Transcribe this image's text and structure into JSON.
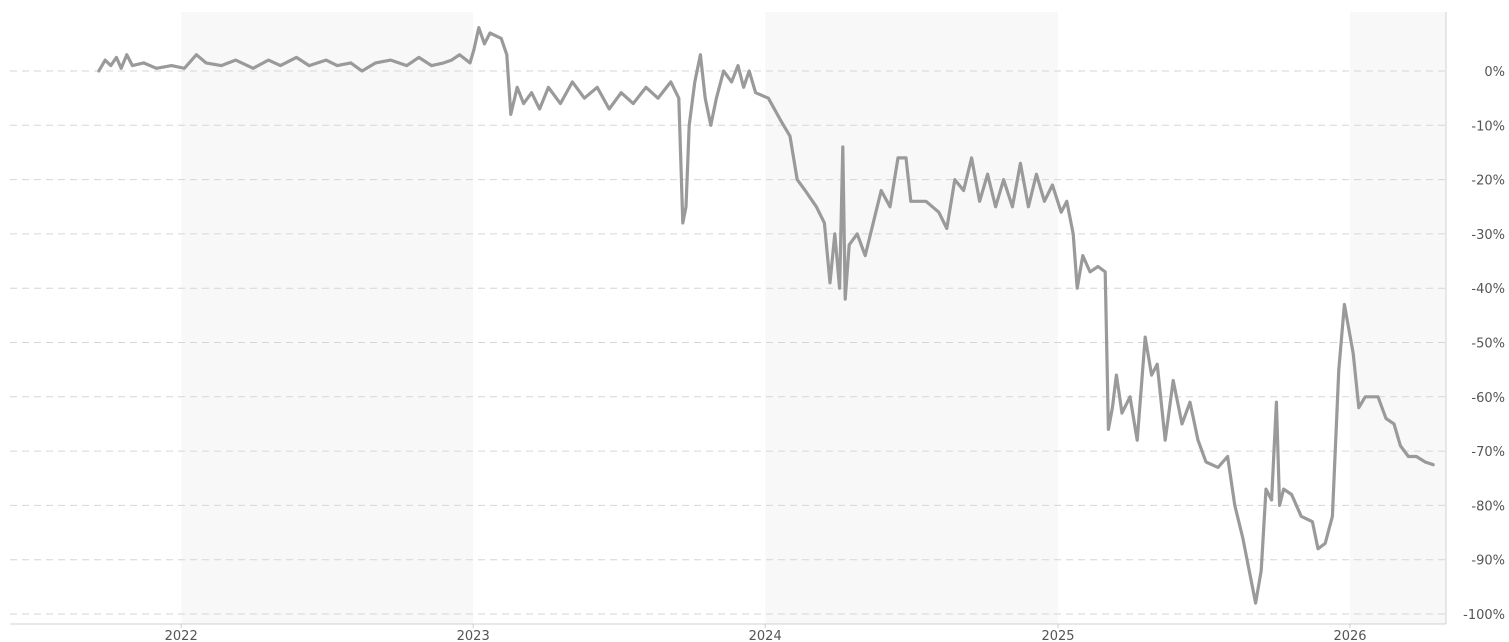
{
  "chart_data": {
    "type": "line",
    "title": "",
    "xlabel": "",
    "ylabel": "",
    "x_tick_labels": [
      "2022",
      "2023",
      "2024",
      "2025",
      "2026"
    ],
    "y_ticks": [
      0,
      -10,
      -20,
      -30,
      -40,
      -50,
      -60,
      -70,
      -80,
      -90,
      -100
    ],
    "y_tick_labels": [
      "0%",
      "-10%",
      "-20%",
      "-30%",
      "-40%",
      "-50%",
      "-60%",
      "-70%",
      "-80%",
      "-90%",
      "-100%"
    ],
    "ylim": [
      -100,
      10
    ],
    "xlim": [
      "2021-06-01",
      "2026-05-01"
    ],
    "grid": true,
    "shaded_years": [
      "2022",
      "2024",
      "2026"
    ],
    "colors": {
      "line": "#9a9a9a",
      "band": "#f8f8f8",
      "grid": "#d6d6d6",
      "text": "#555555"
    },
    "series": [
      {
        "points": [
          [
            "2021-09-20",
            0
          ],
          [
            "2021-09-28",
            2
          ],
          [
            "2021-10-05",
            1
          ],
          [
            "2021-10-12",
            2.5
          ],
          [
            "2021-10-18",
            0.5
          ],
          [
            "2021-10-25",
            3
          ],
          [
            "2021-11-01",
            1
          ],
          [
            "2021-11-15",
            1.5
          ],
          [
            "2021-12-01",
            0.5
          ],
          [
            "2021-12-20",
            1
          ],
          [
            "2022-01-05",
            0.5
          ],
          [
            "2022-01-20",
            3
          ],
          [
            "2022-02-01",
            1.5
          ],
          [
            "2022-02-20",
            1
          ],
          [
            "2022-03-10",
            2
          ],
          [
            "2022-04-01",
            0.5
          ],
          [
            "2022-04-20",
            2
          ],
          [
            "2022-05-05",
            1
          ],
          [
            "2022-05-25",
            2.5
          ],
          [
            "2022-06-10",
            1
          ],
          [
            "2022-07-01",
            2
          ],
          [
            "2022-07-15",
            1
          ],
          [
            "2022-08-01",
            1.5
          ],
          [
            "2022-08-15",
            0
          ],
          [
            "2022-09-01",
            1.5
          ],
          [
            "2022-09-20",
            2
          ],
          [
            "2022-10-10",
            1
          ],
          [
            "2022-10-25",
            2.5
          ],
          [
            "2022-11-10",
            1
          ],
          [
            "2022-11-25",
            1.5
          ],
          [
            "2022-12-05",
            2
          ],
          [
            "2022-12-15",
            3
          ],
          [
            "2022-12-28",
            1.5
          ],
          [
            "2023-01-02",
            4
          ],
          [
            "2023-01-08",
            8
          ],
          [
            "2023-01-15",
            5
          ],
          [
            "2023-01-22",
            7
          ],
          [
            "2023-02-05",
            6
          ],
          [
            "2023-02-12",
            3
          ],
          [
            "2023-02-17",
            -8
          ],
          [
            "2023-02-25",
            -3
          ],
          [
            "2023-03-05",
            -6
          ],
          [
            "2023-03-15",
            -4
          ],
          [
            "2023-03-25",
            -7
          ],
          [
            "2023-04-05",
            -3
          ],
          [
            "2023-04-20",
            -6
          ],
          [
            "2023-05-05",
            -2
          ],
          [
            "2023-05-20",
            -5
          ],
          [
            "2023-06-05",
            -3
          ],
          [
            "2023-06-20",
            -7
          ],
          [
            "2023-07-05",
            -4
          ],
          [
            "2023-07-20",
            -6
          ],
          [
            "2023-08-05",
            -3
          ],
          [
            "2023-08-20",
            -5
          ],
          [
            "2023-09-05",
            -2
          ],
          [
            "2023-09-15",
            -5
          ],
          [
            "2023-09-20",
            -28
          ],
          [
            "2023-09-24",
            -25
          ],
          [
            "2023-09-28",
            -10
          ],
          [
            "2023-10-05",
            -2
          ],
          [
            "2023-10-12",
            3
          ],
          [
            "2023-10-18",
            -5
          ],
          [
            "2023-10-25",
            -10
          ],
          [
            "2023-11-01",
            -5
          ],
          [
            "2023-11-10",
            0
          ],
          [
            "2023-11-20",
            -2
          ],
          [
            "2023-11-28",
            1
          ],
          [
            "2023-12-05",
            -3
          ],
          [
            "2023-12-12",
            0
          ],
          [
            "2023-12-20",
            -4
          ],
          [
            "2024-01-05",
            -5
          ],
          [
            "2024-01-20",
            -9
          ],
          [
            "2024-02-01",
            -12
          ],
          [
            "2024-02-10",
            -20
          ],
          [
            "2024-02-20",
            -22
          ],
          [
            "2024-03-05",
            -25
          ],
          [
            "2024-03-15",
            -28
          ],
          [
            "2024-03-22",
            -39
          ],
          [
            "2024-03-28",
            -30
          ],
          [
            "2024-04-03",
            -40
          ],
          [
            "2024-04-07",
            -14
          ],
          [
            "2024-04-10",
            -42
          ],
          [
            "2024-04-15",
            -32
          ],
          [
            "2024-04-25",
            -30
          ],
          [
            "2024-05-05",
            -34
          ],
          [
            "2024-05-15",
            -28
          ],
          [
            "2024-05-25",
            -22
          ],
          [
            "2024-06-05",
            -25
          ],
          [
            "2024-06-15",
            -16
          ],
          [
            "2024-06-25",
            -16
          ],
          [
            "2024-07-01",
            -24
          ],
          [
            "2024-07-20",
            -24
          ],
          [
            "2024-08-05",
            -26
          ],
          [
            "2024-08-15",
            -29
          ],
          [
            "2024-08-25",
            -20
          ],
          [
            "2024-09-05",
            -22
          ],
          [
            "2024-09-15",
            -16
          ],
          [
            "2024-09-25",
            -24
          ],
          [
            "2024-10-05",
            -19
          ],
          [
            "2024-10-15",
            -25
          ],
          [
            "2024-10-25",
            -20
          ],
          [
            "2024-11-05",
            -25
          ],
          [
            "2024-11-15",
            -17
          ],
          [
            "2024-11-25",
            -25
          ],
          [
            "2024-12-05",
            -19
          ],
          [
            "2024-12-15",
            -24
          ],
          [
            "2024-12-25",
            -21
          ],
          [
            "2025-01-05",
            -26
          ],
          [
            "2025-01-12",
            -24
          ],
          [
            "2025-01-20",
            -30
          ],
          [
            "2025-01-25",
            -40
          ],
          [
            "2025-02-01",
            -34
          ],
          [
            "2025-02-10",
            -37
          ],
          [
            "2025-02-20",
            -36
          ],
          [
            "2025-03-01",
            -37
          ],
          [
            "2025-03-05",
            -66
          ],
          [
            "2025-03-10",
            -62
          ],
          [
            "2025-03-15",
            -56
          ],
          [
            "2025-03-22",
            -63
          ],
          [
            "2025-04-01",
            -60
          ],
          [
            "2025-04-10",
            -68
          ],
          [
            "2025-04-20",
            -49
          ],
          [
            "2025-04-28",
            -56
          ],
          [
            "2025-05-05",
            -54
          ],
          [
            "2025-05-15",
            -68
          ],
          [
            "2025-05-25",
            -57
          ],
          [
            "2025-06-05",
            -65
          ],
          [
            "2025-06-15",
            -61
          ],
          [
            "2025-06-25",
            -68
          ],
          [
            "2025-07-05",
            -72
          ],
          [
            "2025-07-20",
            -73
          ],
          [
            "2025-08-01",
            -71
          ],
          [
            "2025-08-10",
            -80
          ],
          [
            "2025-08-20",
            -86
          ],
          [
            "2025-08-28",
            -92
          ],
          [
            "2025-09-05",
            -98
          ],
          [
            "2025-09-12",
            -92
          ],
          [
            "2025-09-18",
            -77
          ],
          [
            "2025-09-25",
            -79
          ],
          [
            "2025-10-01",
            -61
          ],
          [
            "2025-10-05",
            -80
          ],
          [
            "2025-10-10",
            -77
          ],
          [
            "2025-10-20",
            -78
          ],
          [
            "2025-11-01",
            -82
          ],
          [
            "2025-11-15",
            -83
          ],
          [
            "2025-11-22",
            -88
          ],
          [
            "2025-12-01",
            -87
          ],
          [
            "2025-12-10",
            -82
          ],
          [
            "2025-12-18",
            -55
          ],
          [
            "2025-12-25",
            -43
          ],
          [
            "2026-01-05",
            -52
          ],
          [
            "2026-01-12",
            -62
          ],
          [
            "2026-01-20",
            -60
          ],
          [
            "2026-02-05",
            -60
          ],
          [
            "2026-02-15",
            -64
          ],
          [
            "2026-02-25",
            -65
          ],
          [
            "2026-03-05",
            -69
          ],
          [
            "2026-03-15",
            -71
          ],
          [
            "2026-03-25",
            -71
          ],
          [
            "2026-04-05",
            -72
          ],
          [
            "2026-04-15",
            -72.5
          ]
        ]
      }
    ]
  }
}
